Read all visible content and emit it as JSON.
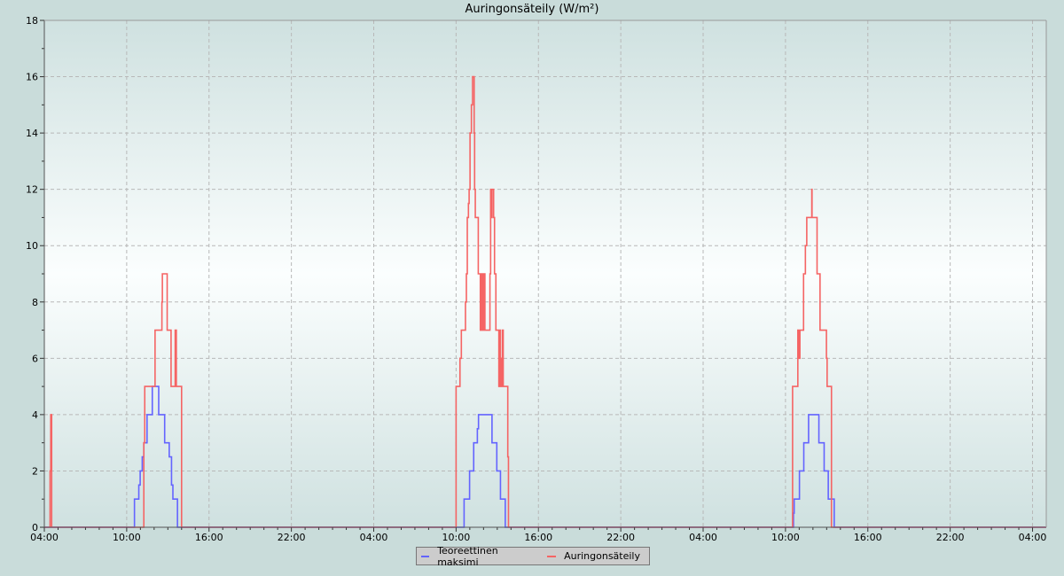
{
  "chart_data": {
    "type": "line",
    "step": true,
    "title": "Auringonsäteily (W/m²)",
    "xlabel": "",
    "ylabel": "",
    "ylim": [
      0,
      18
    ],
    "yticks": [
      0,
      2,
      4,
      6,
      8,
      10,
      12,
      14,
      16,
      18
    ],
    "xlim": [
      "04:00",
      "05:00"
    ],
    "days_spanned": 3,
    "xtick_labels": [
      "04:00",
      "10:00",
      "16:00",
      "22:00",
      "04:00",
      "10:00",
      "16:00",
      "22:00",
      "04:00",
      "10:00",
      "16:00",
      "22:00",
      "04:00"
    ],
    "grid": true,
    "legend_position": "bottom-center",
    "series": [
      {
        "name": "Teoreettinen maksimi",
        "color": "#6464ff",
        "days": [
          [
            [
              "10:34",
              1
            ],
            [
              "10:53",
              1.5
            ],
            [
              "10:59",
              2
            ],
            [
              "11:08",
              2.5
            ],
            [
              "11:15",
              3
            ],
            [
              "11:29",
              4
            ],
            [
              "11:52",
              5
            ],
            [
              "12:20",
              4
            ],
            [
              "12:46",
              3
            ],
            [
              "13:06",
              2.5
            ],
            [
              "13:16",
              1.5
            ],
            [
              "13:22",
              1
            ],
            [
              "13:42",
              0
            ]
          ],
          [
            [
              "10:35",
              1
            ],
            [
              "10:59",
              2
            ],
            [
              "11:17",
              3
            ],
            [
              "11:33",
              3.5
            ],
            [
              "11:38",
              4
            ],
            [
              "12:37",
              3
            ],
            [
              "12:58",
              2
            ],
            [
              "13:14",
              1
            ],
            [
              "13:35",
              0
            ]
          ],
          [
            [
              "10:35",
              0.5
            ],
            [
              "10:38",
              1
            ],
            [
              "11:01",
              2
            ],
            [
              "11:20",
              3
            ],
            [
              "11:41",
              4
            ],
            [
              "12:26",
              3
            ],
            [
              "12:49",
              2
            ],
            [
              "13:07",
              1
            ],
            [
              "13:33",
              0
            ]
          ]
        ]
      },
      {
        "name": "Auringonsäteily",
        "color": "#f56464",
        "days": [
          [
            [
              "04:25",
              2
            ],
            [
              "04:28",
              4
            ],
            [
              "04:32",
              0
            ],
            [
              "11:15",
              3
            ],
            [
              "11:19",
              5
            ],
            [
              "12:04",
              7
            ],
            [
              "12:34",
              8
            ],
            [
              "12:36",
              9
            ],
            [
              "12:57",
              7
            ],
            [
              "13:14",
              5
            ],
            [
              "13:32",
              7
            ],
            [
              "13:34",
              5
            ],
            [
              "13:36",
              7
            ],
            [
              "13:37",
              5
            ],
            [
              "14:00",
              0
            ]
          ],
          [
            [
              "10:00",
              5
            ],
            [
              "10:17",
              6
            ],
            [
              "10:23",
              7
            ],
            [
              "10:41",
              8
            ],
            [
              "10:45",
              9
            ],
            [
              "10:49",
              11
            ],
            [
              "10:54",
              11.5
            ],
            [
              "10:57",
              12
            ],
            [
              "11:01",
              14
            ],
            [
              "11:07",
              15
            ],
            [
              "11:12",
              16
            ],
            [
              "11:19",
              14
            ],
            [
              "11:21",
              12
            ],
            [
              "11:24",
              11
            ],
            [
              "11:37",
              9
            ],
            [
              "11:46",
              7
            ],
            [
              "11:48",
              9
            ],
            [
              "11:50",
              7
            ],
            [
              "11:52",
              9
            ],
            [
              "11:55",
              7
            ],
            [
              "11:57",
              9
            ],
            [
              "12:00",
              7
            ],
            [
              "12:03",
              9
            ],
            [
              "12:06",
              7
            ],
            [
              "12:28",
              9
            ],
            [
              "12:31",
              12
            ],
            [
              "12:35",
              11
            ],
            [
              "12:37",
              12
            ],
            [
              "12:44",
              11
            ],
            [
              "12:48",
              9
            ],
            [
              "12:54",
              7
            ],
            [
              "13:07",
              5
            ],
            [
              "13:10",
              7
            ],
            [
              "13:13",
              5
            ],
            [
              "13:16",
              6
            ],
            [
              "13:19",
              5
            ],
            [
              "13:22",
              7
            ],
            [
              "13:26",
              5
            ],
            [
              "13:30",
              5
            ],
            [
              "13:46",
              2.5
            ],
            [
              "13:49",
              0
            ]
          ],
          [
            [
              "10:31",
              5
            ],
            [
              "10:54",
              7
            ],
            [
              "10:56",
              6
            ],
            [
              "10:58",
              7
            ],
            [
              "11:01",
              6
            ],
            [
              "11:03",
              7
            ],
            [
              "11:19",
              9
            ],
            [
              "11:27",
              10
            ],
            [
              "11:33",
              11
            ],
            [
              "11:55",
              12
            ],
            [
              "11:56",
              11
            ],
            [
              "12:18",
              9
            ],
            [
              "12:31",
              7
            ],
            [
              "12:59",
              6
            ],
            [
              "13:02",
              5
            ],
            [
              "13:21",
              0
            ]
          ]
        ]
      }
    ]
  }
}
